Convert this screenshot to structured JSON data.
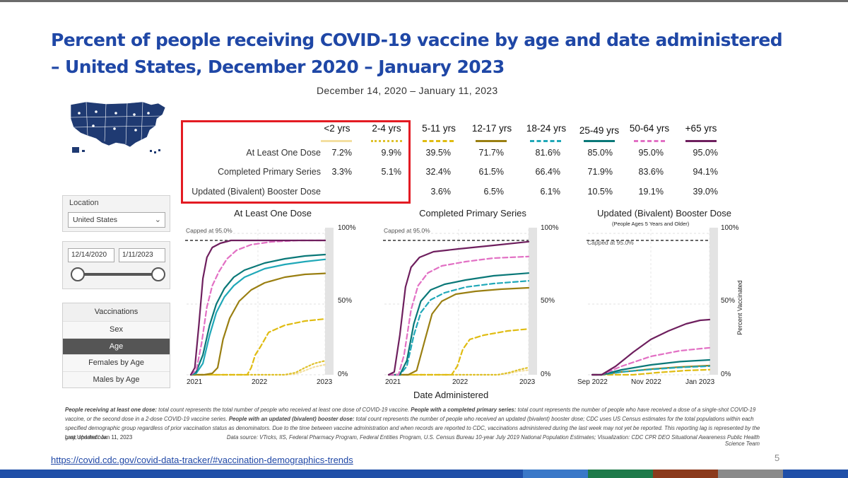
{
  "slide": {
    "title_line1": "Percent of people receiving COVID-19 vaccine by age and date administered",
    "title_line2": "– United States, December 2020 – January 2023",
    "subtitle": "December 14, 2020 – January 11, 2023",
    "link": "https://covid.cdc.gov/covid-data-tracker/#vaccination-demographics-trends",
    "page_number": "5",
    "footnote_label_1": "People receiving at least one dose:",
    "footnote_text_1": " total count represents the total number of people who received at least one dose of COVID-19 vaccine. ",
    "footnote_label_2": "People with a completed primary series:",
    "footnote_text_2": " total count represents the number of people who have received a dose of a single-shot COVID-19 vaccine, or the second dose in a 2-dose COVID-19 vaccine series. ",
    "footnote_label_3": "People with an updated (bivalent) booster dose:",
    "footnote_text_3": " total count represents the number of people who received an updated (bivalent) booster dose; CDC uses US Census estimates for the total populations within each specified demographic group regardless of prior vaccination status as denominators. Due to the time between vaccine administration and when records are reported to CDC, vaccinations administered during the last week may not yet be reported. This reporting lag is represented by the gray, shaded box.",
    "last_updated": "Last Updated: Jan 11, 2023",
    "data_source": "Data source: VTrcks, IIS, Federal Pharmacy Program, Federal Entities Program, U.S. Census Bureau 10-year July 2019 National Population Estimates; Visualization: CDC CPR DEO Situational Awareness Public Health Science Team"
  },
  "filters": {
    "location_label": "Location",
    "location_value": "United States",
    "start_date": "12/14/2020",
    "end_date": "1/11/2023",
    "menu_header": "Vaccinations",
    "menu_items": [
      "Sex",
      "Age",
      "Females by Age",
      "Males by Age"
    ],
    "active_item": "Age"
  },
  "colors": {
    "title": "#1f47a6",
    "highlight_box": "#e31b23",
    "lt2": "#f3dfa0",
    "y2_4": "#dfc12c",
    "y5_11": "#e0bc12",
    "y12_17": "#9a7f12",
    "y18_24": "#20a8b8",
    "y25_49": "#0a7878",
    "y50_64": "#e270c4",
    "y65": "#6e1f5e"
  },
  "summary_table": {
    "row_labels": [
      "At Least One Dose",
      "Completed Primary Series",
      "Updated (Bivalent) Booster Dose"
    ],
    "age_groups": [
      "<2 yrs",
      "2-4 yrs",
      "5-11 yrs",
      "12-17 yrs",
      "18-24 yrs",
      "25-49 yrs",
      "50-64 yrs",
      "+65 yrs"
    ],
    "at_least_one_dose": [
      "7.2%",
      "9.9%",
      "39.5%",
      "71.7%",
      "81.6%",
      "85.0%",
      "95.0%",
      "95.0%"
    ],
    "completed_primary_series": [
      "3.3%",
      "5.1%",
      "32.4%",
      "61.5%",
      "66.4%",
      "71.9%",
      "83.6%",
      "94.1%"
    ],
    "updated_booster": [
      "",
      "",
      "3.6%",
      "6.5%",
      "6.1%",
      "10.5%",
      "19.1%",
      "39.0%"
    ]
  },
  "chart_data": [
    {
      "type": "line",
      "title": "At Least One Dose",
      "note": "Capped at 95.0%",
      "x_ticks": [
        "2021",
        "2022",
        "2023"
      ],
      "y_ticks": [
        "100%",
        "50%",
        "0%"
      ],
      "ylim": [
        0,
        100
      ],
      "xlabel": "",
      "series": [
        {
          "name": "<2 yrs",
          "key": "lt2",
          "dash": "dotted",
          "values": [
            [
              0.0,
              0
            ],
            [
              0.7,
              0
            ],
            [
              0.78,
              0.5
            ],
            [
              0.85,
              3
            ],
            [
              0.92,
              5.5
            ],
            [
              1.0,
              7.2
            ]
          ]
        },
        {
          "name": "2-4 yrs",
          "key": "y2_4",
          "dash": "dotted",
          "values": [
            [
              0.0,
              0
            ],
            [
              0.7,
              0
            ],
            [
              0.78,
              1.5
            ],
            [
              0.85,
              5
            ],
            [
              0.92,
              8
            ],
            [
              1.0,
              9.9
            ]
          ]
        },
        {
          "name": "5-11 yrs",
          "key": "y5_11",
          "dash": "dashed",
          "values": [
            [
              0.0,
              0
            ],
            [
              0.42,
              0
            ],
            [
              0.45,
              5
            ],
            [
              0.48,
              14
            ],
            [
              0.52,
              20
            ],
            [
              0.58,
              30
            ],
            [
              0.7,
              35
            ],
            [
              0.85,
              38
            ],
            [
              1.0,
              39.5
            ]
          ]
        },
        {
          "name": "12-17 yrs",
          "key": "y12_17",
          "dash": "solid",
          "values": [
            [
              0.0,
              0
            ],
            [
              0.1,
              0
            ],
            [
              0.16,
              1
            ],
            [
              0.2,
              5
            ],
            [
              0.24,
              25
            ],
            [
              0.29,
              40
            ],
            [
              0.36,
              52
            ],
            [
              0.45,
              60
            ],
            [
              0.55,
              65
            ],
            [
              0.7,
              69
            ],
            [
              0.85,
              71
            ],
            [
              1.0,
              71.7
            ]
          ]
        },
        {
          "name": "18-24 yrs",
          "key": "y18_24",
          "dash": "solid",
          "values": [
            [
              0.0,
              0
            ],
            [
              0.04,
              1
            ],
            [
              0.09,
              8
            ],
            [
              0.14,
              28
            ],
            [
              0.19,
              44
            ],
            [
              0.25,
              55
            ],
            [
              0.32,
              63
            ],
            [
              0.4,
              69
            ],
            [
              0.55,
              75
            ],
            [
              0.7,
              78
            ],
            [
              0.85,
              80
            ],
            [
              1.0,
              81.6
            ]
          ]
        },
        {
          "name": "25-49 yrs",
          "key": "y25_49",
          "dash": "solid",
          "values": [
            [
              0.0,
              0
            ],
            [
              0.04,
              2
            ],
            [
              0.09,
              14
            ],
            [
              0.14,
              35
            ],
            [
              0.19,
              50
            ],
            [
              0.25,
              61
            ],
            [
              0.32,
              69
            ],
            [
              0.4,
              74
            ],
            [
              0.55,
              79
            ],
            [
              0.7,
              82
            ],
            [
              0.85,
              84
            ],
            [
              1.0,
              85.0
            ]
          ]
        },
        {
          "name": "50-64 yrs",
          "key": "y50_64",
          "dash": "dashed",
          "values": [
            [
              0.0,
              0
            ],
            [
              0.04,
              3
            ],
            [
              0.08,
              22
            ],
            [
              0.12,
              48
            ],
            [
              0.16,
              63
            ],
            [
              0.21,
              73
            ],
            [
              0.27,
              82
            ],
            [
              0.34,
              88
            ],
            [
              0.45,
              92
            ],
            [
              0.6,
              94
            ],
            [
              0.8,
              95
            ],
            [
              1.0,
              95.0
            ]
          ]
        },
        {
          "name": "+65 yrs",
          "key": "y65",
          "dash": "solid",
          "values": [
            [
              0.0,
              0
            ],
            [
              0.03,
              5
            ],
            [
              0.06,
              35
            ],
            [
              0.09,
              68
            ],
            [
              0.12,
              83
            ],
            [
              0.16,
              90
            ],
            [
              0.22,
              93
            ],
            [
              0.3,
              95
            ],
            [
              0.5,
              95
            ],
            [
              1.0,
              95.0
            ]
          ]
        }
      ]
    },
    {
      "type": "line",
      "title": "Completed Primary Series",
      "note": "Capped at 95.0%",
      "x_ticks": [
        "2021",
        "2022",
        "2023"
      ],
      "y_ticks": [
        "100%",
        "50%",
        "0%"
      ],
      "ylim": [
        0,
        100
      ],
      "xlabel": "Date Administered",
      "series": [
        {
          "name": "<2 yrs",
          "key": "lt2",
          "dash": "dotted",
          "values": [
            [
              0.0,
              0
            ],
            [
              0.78,
              0
            ],
            [
              0.86,
              1
            ],
            [
              0.93,
              2.5
            ],
            [
              1.0,
              3.3
            ]
          ]
        },
        {
          "name": "2-4 yrs",
          "key": "y2_4",
          "dash": "dotted",
          "values": [
            [
              0.0,
              0
            ],
            [
              0.78,
              0
            ],
            [
              0.86,
              1.5
            ],
            [
              0.93,
              3.5
            ],
            [
              1.0,
              5.1
            ]
          ]
        },
        {
          "name": "5-11 yrs",
          "key": "y5_11",
          "dash": "dashed",
          "values": [
            [
              0.0,
              0
            ],
            [
              0.45,
              0
            ],
            [
              0.49,
              6
            ],
            [
              0.53,
              18
            ],
            [
              0.58,
              25
            ],
            [
              0.68,
              28
            ],
            [
              0.85,
              31
            ],
            [
              1.0,
              32.4
            ]
          ]
        },
        {
          "name": "12-17 yrs",
          "key": "y12_17",
          "dash": "solid",
          "values": [
            [
              0.0,
              0
            ],
            [
              0.14,
              0
            ],
            [
              0.2,
              3
            ],
            [
              0.26,
              25
            ],
            [
              0.31,
              43
            ],
            [
              0.38,
              52
            ],
            [
              0.48,
              57
            ],
            [
              0.62,
              59
            ],
            [
              0.8,
              60.5
            ],
            [
              1.0,
              61.5
            ]
          ]
        },
        {
          "name": "18-24 yrs",
          "key": "y18_24",
          "dash": "dashed",
          "values": [
            [
              0.0,
              0
            ],
            [
              0.08,
              0
            ],
            [
              0.13,
              6
            ],
            [
              0.18,
              28
            ],
            [
              0.23,
              44
            ],
            [
              0.3,
              53
            ],
            [
              0.4,
              58
            ],
            [
              0.55,
              62
            ],
            [
              0.75,
              64.5
            ],
            [
              1.0,
              66.4
            ]
          ]
        },
        {
          "name": "25-49 yrs",
          "key": "y25_49",
          "dash": "solid",
          "values": [
            [
              0.0,
              0
            ],
            [
              0.08,
              0
            ],
            [
              0.13,
              10
            ],
            [
              0.18,
              36
            ],
            [
              0.23,
              52
            ],
            [
              0.3,
              60
            ],
            [
              0.4,
              64
            ],
            [
              0.55,
              67
            ],
            [
              0.75,
              70
            ],
            [
              1.0,
              71.9
            ]
          ]
        },
        {
          "name": "50-64 yrs",
          "key": "y50_64",
          "dash": "dashed",
          "values": [
            [
              0.0,
              0
            ],
            [
              0.07,
              0
            ],
            [
              0.11,
              14
            ],
            [
              0.16,
              46
            ],
            [
              0.21,
              63
            ],
            [
              0.28,
              72
            ],
            [
              0.38,
              77
            ],
            [
              0.55,
              80
            ],
            [
              0.75,
              82.5
            ],
            [
              1.0,
              83.6
            ]
          ]
        },
        {
          "name": "+65 yrs",
          "key": "y65",
          "dash": "solid",
          "values": [
            [
              0.0,
              0
            ],
            [
              0.04,
              2
            ],
            [
              0.08,
              28
            ],
            [
              0.12,
              62
            ],
            [
              0.16,
              76
            ],
            [
              0.22,
              83
            ],
            [
              0.32,
              87
            ],
            [
              0.5,
              89
            ],
            [
              0.75,
              91.5
            ],
            [
              1.0,
              94.1
            ]
          ]
        }
      ]
    },
    {
      "type": "line",
      "title": "Updated (Bivalent) Booster Dose",
      "note": "Capped at 95.0%",
      "subnote": "(People Ages 5 Years and Older)",
      "x_ticks": [
        "Sep 2022",
        "Nov 2022",
        "Jan 2023"
      ],
      "y_ticks": [
        "100%",
        "50%",
        "0%"
      ],
      "ylim": [
        0,
        100
      ],
      "xlabel": "",
      "ylabel": "Percent Vaccinated",
      "series": [
        {
          "name": "5-11 yrs",
          "key": "y5_11",
          "dash": "dashed",
          "values": [
            [
              0.0,
              0
            ],
            [
              0.35,
              0
            ],
            [
              0.55,
              1.5
            ],
            [
              0.8,
              3
            ],
            [
              1.0,
              3.6
            ]
          ]
        },
        {
          "name": "12-17 yrs",
          "key": "y12_17",
          "dash": "solid",
          "values": [
            [
              0.0,
              0
            ],
            [
              0.08,
              0
            ],
            [
              0.25,
              2
            ],
            [
              0.5,
              4
            ],
            [
              0.75,
              5.5
            ],
            [
              1.0,
              6.5
            ]
          ]
        },
        {
          "name": "18-24 yrs",
          "key": "y18_24",
          "dash": "dashed",
          "values": [
            [
              0.0,
              0
            ],
            [
              0.08,
              0
            ],
            [
              0.25,
              2
            ],
            [
              0.5,
              3.8
            ],
            [
              0.75,
              5.2
            ],
            [
              1.0,
              6.1
            ]
          ]
        },
        {
          "name": "25-49 yrs",
          "key": "y25_49",
          "dash": "solid",
          "values": [
            [
              0.0,
              0
            ],
            [
              0.08,
              0
            ],
            [
              0.25,
              3.5
            ],
            [
              0.5,
              7
            ],
            [
              0.75,
              9.3
            ],
            [
              1.0,
              10.5
            ]
          ]
        },
        {
          "name": "50-64 yrs",
          "key": "y50_64",
          "dash": "dashed",
          "values": [
            [
              0.0,
              0
            ],
            [
              0.08,
              0
            ],
            [
              0.25,
              6
            ],
            [
              0.5,
              13
            ],
            [
              0.75,
              17
            ],
            [
              1.0,
              19.1
            ]
          ]
        },
        {
          "name": "+65 yrs",
          "key": "y65",
          "dash": "solid",
          "values": [
            [
              0.0,
              0
            ],
            [
              0.08,
              0
            ],
            [
              0.2,
              6
            ],
            [
              0.35,
              16
            ],
            [
              0.5,
              25
            ],
            [
              0.65,
              31
            ],
            [
              0.8,
              36
            ],
            [
              0.92,
              38.5
            ],
            [
              1.0,
              39.0
            ]
          ]
        }
      ]
    }
  ]
}
